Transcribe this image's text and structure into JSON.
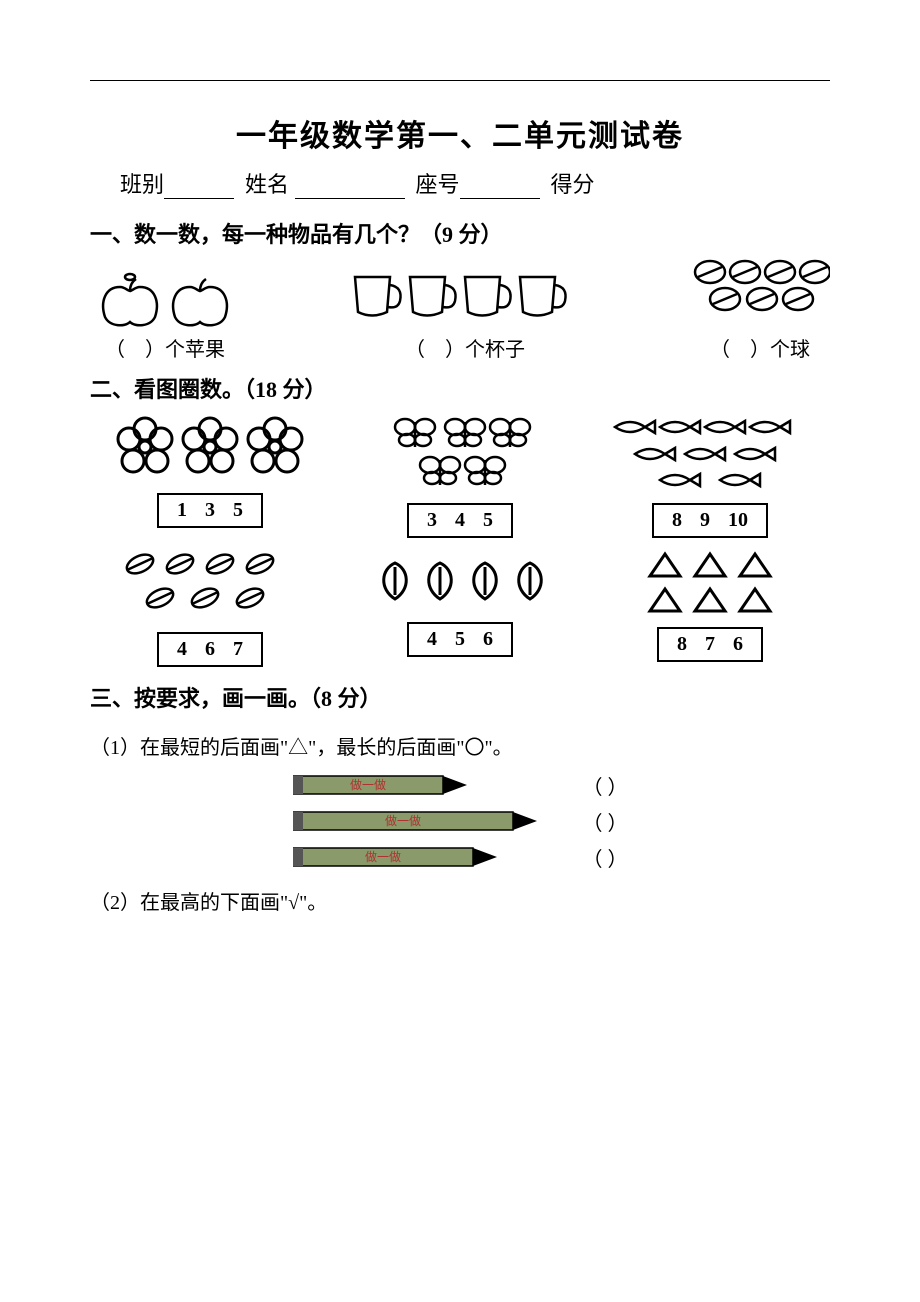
{
  "title": "一年级数学第一、二单元测试卷",
  "info": {
    "class_label": "班别",
    "name_label": "姓名",
    "seat_label": "座号",
    "score_label": "得分"
  },
  "q1": {
    "heading": "一、数一数，每一种物品有几个？（9 分）",
    "items": [
      {
        "label_prefix": "（",
        "label_suffix": "）个苹果",
        "count": 2,
        "icon": "apple"
      },
      {
        "label_prefix": "（",
        "label_suffix": "）个杯子",
        "count": 4,
        "icon": "cup"
      },
      {
        "label_prefix": "（",
        "label_suffix": "）个球",
        "count": 7,
        "icon": "ball"
      }
    ]
  },
  "q2": {
    "heading": "二、看图圈数。（18 分）",
    "cells": [
      {
        "icon": "flower",
        "count": 3,
        "options": [
          "1",
          "3",
          "5"
        ]
      },
      {
        "icon": "butterfly",
        "count": 5,
        "options": [
          "3",
          "4",
          "5"
        ]
      },
      {
        "icon": "fish",
        "count": 9,
        "options": [
          "8",
          "9",
          "10"
        ]
      },
      {
        "icon": "leaf",
        "count": 7,
        "options": [
          "4",
          "6",
          "7"
        ]
      },
      {
        "icon": "peach",
        "count": 4,
        "options": [
          "4",
          "5",
          "6"
        ]
      },
      {
        "icon": "triangle",
        "count": 6,
        "options": [
          "8",
          "7",
          "6"
        ]
      }
    ]
  },
  "q3": {
    "heading": "三、按要求，画一画。（8 分）",
    "sub1": "（1）在最短的后面画\"△\"，最长的后面画\"〇\"。",
    "sub2": "（2）在最高的下面画\"√\"。",
    "pencils": [
      {
        "length": 150,
        "paren": "（    ）"
      },
      {
        "length": 220,
        "paren": "（    ）"
      },
      {
        "length": 180,
        "paren": "（    ）"
      }
    ],
    "pencil_body_color": "#8a9a6b",
    "pencil_tip_color": "#000000",
    "pencil_band_color": "#c0c0c0",
    "pencil_text_color": "#b03030",
    "pencil_text": "做一做"
  },
  "style": {
    "text_color": "#000000",
    "background": "#ffffff"
  }
}
